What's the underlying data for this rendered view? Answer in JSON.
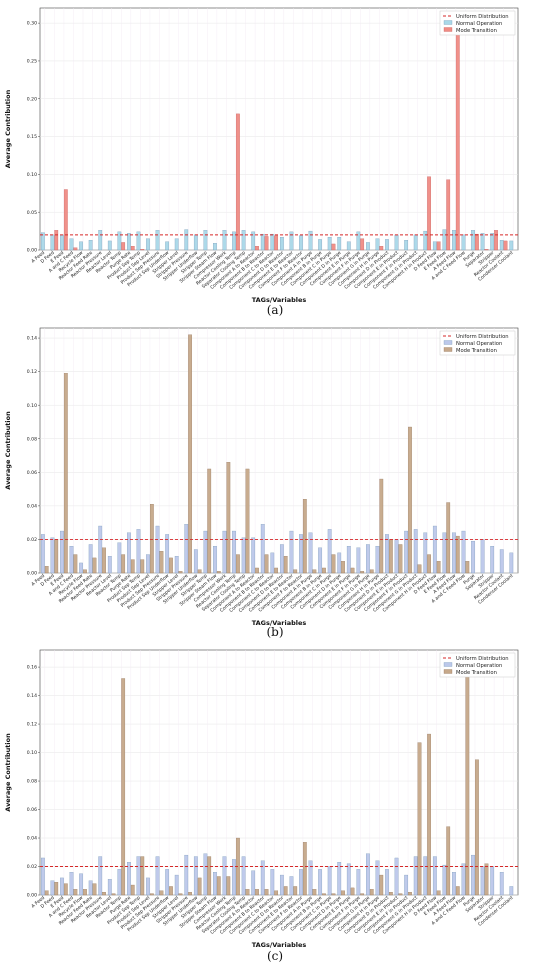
{
  "variables": [
    "A Feed",
    "D Feed",
    "E Feed",
    "A and C Feed",
    "Recycle Flow",
    "Reactor Feed Rate",
    "Reactor Pressure",
    "Reactor Level",
    "Reactor Temp",
    "Purge Rate",
    "Product Sep Temp",
    "Product Sep Level",
    "Product Sep Pressure",
    "Product Sep Underflow",
    "Stripper Level",
    "Stripper Pressure",
    "Stripper Underflow",
    "Stripper Temp",
    "Stripper Steam Flow",
    "Compressor Work",
    "Reactor Cooling Temp",
    "Separator Cooling Temp",
    "Component A to Reactor",
    "Component B to Reactor",
    "Component C to Reactor",
    "Component D to Reactor",
    "Component E to Reactor",
    "Component F to Reactor",
    "Component A in Purge",
    "Component B in Purge",
    "Component C in Purge",
    "Component D in Purge",
    "Component E in Purge",
    "Component F in Purge",
    "Component G in Purge",
    "Component H in Purge",
    "Component D in Product",
    "Component E in Product",
    "Component F in Product",
    "Component G in Product",
    "Component H in Product",
    "D Feed Flow",
    "E Feed Flow",
    "A Feed Flow",
    "A and C Feed Flow",
    "Purge",
    "Separator",
    "Stripper",
    "Reactor Coolant",
    "Condenser Coolant"
  ],
  "chart_data": [
    {
      "type": "bar",
      "panel_label": "(a)",
      "xlabel": "TAGs/Variables",
      "ylabel": "Average Contribution",
      "ylim": [
        0,
        0.32
      ],
      "yticks": [
        0.0,
        0.05,
        0.1,
        0.15,
        0.2,
        0.25,
        0.3
      ],
      "ytick_labels": [
        "0.00",
        "0.05",
        "0.10",
        "0.15",
        "0.20",
        "0.25",
        "0.30"
      ],
      "uniform_value": 0.02,
      "grid": true,
      "legend_position": "top-right",
      "legend": [
        "Uniform Distribution",
        "Normal Operation",
        "Mode Transition"
      ],
      "colors": {
        "normal": "#a9d8e8",
        "transition": "#f08c84",
        "uniform": "#d62728"
      },
      "series": [
        {
          "name": "Normal Operation",
          "values": [
            0.023,
            0.02,
            0.02,
            0.015,
            0.011,
            0.013,
            0.026,
            0.012,
            0.024,
            0.022,
            0.024,
            0.015,
            0.026,
            0.011,
            0.015,
            0.027,
            0.02,
            0.026,
            0.009,
            0.026,
            0.024,
            0.026,
            0.024,
            0.021,
            0.021,
            0.017,
            0.024,
            0.019,
            0.025,
            0.014,
            0.017,
            0.017,
            0.011,
            0.024,
            0.01,
            0.015,
            0.014,
            0.02,
            0.013,
            0.02,
            0.025,
            0.011,
            0.027,
            0.026,
            0.02,
            0.026,
            0.022,
            0.022,
            0.013,
            0.012
          ]
        },
        {
          "name": "Mode Transition",
          "values": [
            0.0,
            0.026,
            0.08,
            0.003,
            0.0,
            0.0,
            0.0,
            0.0,
            0.01,
            0.005,
            0.001,
            0.0,
            0.0,
            0.0,
            0.0,
            0.0,
            0.0,
            0.0,
            0.0,
            0.0,
            0.18,
            0.0,
            0.005,
            0.018,
            0.019,
            0.0,
            0.0,
            0.0,
            0.0,
            0.0,
            0.008,
            0.0,
            0.0,
            0.015,
            0.0,
            0.005,
            0.0,
            0.0,
            0.0,
            0.0,
            0.097,
            0.011,
            0.093,
            0.305,
            0.0,
            0.021,
            0.001,
            0.026,
            0.012,
            0.0
          ]
        }
      ]
    },
    {
      "type": "bar",
      "panel_label": "(b)",
      "xlabel": "TAGs/Variables",
      "ylabel": "Average Contribution",
      "ylim": [
        0,
        0.146
      ],
      "yticks": [
        0.0,
        0.02,
        0.04,
        0.06,
        0.08,
        0.1,
        0.12,
        0.14
      ],
      "ytick_labels": [
        "0.00",
        "0.02",
        "0.04",
        "0.06",
        "0.08",
        "0.10",
        "0.12",
        "0.14"
      ],
      "uniform_value": 0.02,
      "grid": true,
      "legend_position": "top-right",
      "legend": [
        "Uniform Distribution",
        "Normal Operation",
        "Mode Transition"
      ],
      "colors": {
        "normal": "#bcc8ea",
        "transition": "#f08c84",
        "overlap": "#c6a88a",
        "uniform": "#d62728"
      },
      "series": [
        {
          "name": "Normal Operation",
          "values": [
            0.023,
            0.021,
            0.025,
            0.016,
            0.006,
            0.017,
            0.028,
            0.01,
            0.018,
            0.024,
            0.026,
            0.011,
            0.028,
            0.023,
            0.01,
            0.029,
            0.014,
            0.025,
            0.016,
            0.025,
            0.025,
            0.021,
            0.021,
            0.029,
            0.012,
            0.017,
            0.025,
            0.023,
            0.024,
            0.015,
            0.026,
            0.012,
            0.016,
            0.015,
            0.017,
            0.016,
            0.023,
            0.02,
            0.025,
            0.026,
            0.024,
            0.028,
            0.024,
            0.024,
            0.025,
            0.019,
            0.02,
            0.016,
            0.014,
            0.012
          ]
        },
        {
          "name": "Mode Transition",
          "values": [
            0.004,
            0.02,
            0.119,
            0.011,
            0.002,
            0.009,
            0.015,
            0.0,
            0.011,
            0.008,
            0.008,
            0.041,
            0.013,
            0.009,
            0.001,
            0.142,
            0.002,
            0.062,
            0.001,
            0.066,
            0.011,
            0.062,
            0.003,
            0.011,
            0.003,
            0.01,
            0.002,
            0.044,
            0.002,
            0.003,
            0.011,
            0.007,
            0.003,
            0.001,
            0.002,
            0.056,
            0.02,
            0.017,
            0.087,
            0.005,
            0.011,
            0.007,
            0.042,
            0.022,
            0.007,
            0.0,
            0.0,
            0.0,
            0.0,
            0.0
          ]
        }
      ]
    },
    {
      "type": "bar",
      "panel_label": "(c)",
      "xlabel": "TAGs/Variables",
      "ylabel": "Average Contribution",
      "ylim": [
        0,
        0.172
      ],
      "yticks": [
        0.0,
        0.02,
        0.04,
        0.06,
        0.08,
        0.1,
        0.12,
        0.14,
        0.16
      ],
      "ytick_labels": [
        "0.00",
        "0.02",
        "0.04",
        "0.06",
        "0.08",
        "0.10",
        "0.12",
        "0.14",
        "0.16"
      ],
      "uniform_value": 0.02,
      "grid": true,
      "legend_position": "top-right",
      "legend": [
        "Uniform Distribution",
        "Normal Operation",
        "Mode Transition"
      ],
      "colors": {
        "normal": "#bcc8ea",
        "transition": "#f08c84",
        "overlap": "#c6a88a",
        "uniform": "#d62728"
      },
      "series": [
        {
          "name": "Normal Operation",
          "values": [
            0.026,
            0.01,
            0.012,
            0.016,
            0.015,
            0.01,
            0.027,
            0.011,
            0.018,
            0.023,
            0.027,
            0.012,
            0.027,
            0.018,
            0.014,
            0.028,
            0.027,
            0.029,
            0.016,
            0.027,
            0.025,
            0.027,
            0.017,
            0.024,
            0.018,
            0.014,
            0.013,
            0.018,
            0.024,
            0.018,
            0.02,
            0.023,
            0.022,
            0.018,
            0.029,
            0.024,
            0.018,
            0.026,
            0.014,
            0.027,
            0.027,
            0.027,
            0.021,
            0.016,
            0.022,
            0.028,
            0.02,
            0.02,
            0.016,
            0.006
          ]
        },
        {
          "name": "Mode Transition",
          "values": [
            0.003,
            0.009,
            0.008,
            0.004,
            0.004,
            0.008,
            0.002,
            0.001,
            0.152,
            0.007,
            0.027,
            0.001,
            0.003,
            0.006,
            0.001,
            0.002,
            0.012,
            0.027,
            0.013,
            0.013,
            0.04,
            0.004,
            0.004,
            0.004,
            0.003,
            0.006,
            0.006,
            0.037,
            0.004,
            0.001,
            0.001,
            0.003,
            0.005,
            0.001,
            0.004,
            0.014,
            0.002,
            0.001,
            0.002,
            0.107,
            0.113,
            0.003,
            0.048,
            0.006,
            0.155,
            0.095,
            0.022,
            0.0,
            0.0,
            0.0
          ]
        }
      ]
    }
  ]
}
